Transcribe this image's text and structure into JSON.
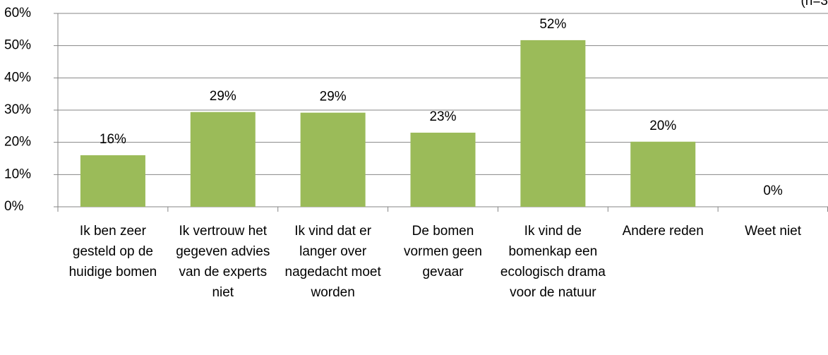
{
  "chart_data": {
    "type": "bar",
    "annotation": "(n=3",
    "categories": [
      "Ik ben zeer gesteld op de huidige bomen",
      "Ik vertrouw het gegeven advies van de experts niet",
      "Ik vind dat er langer over nagedacht moet worden",
      "De bomen vormen geen gevaar",
      "Ik vind de bomenkap een ecologisch drama voor de natuur",
      "Andere reden",
      "Weet niet"
    ],
    "values": [
      16,
      29.4,
      29.2,
      23,
      51.7,
      20.2,
      0
    ],
    "value_labels": [
      "16%",
      "29%",
      "29%",
      "23%",
      "52%",
      "20%",
      "0%"
    ],
    "color": "#9bbb59",
    "ylim": [
      0,
      60
    ],
    "yticks": [
      {
        "value": 0,
        "label": "0%"
      },
      {
        "value": 10,
        "label": "10%"
      },
      {
        "value": 20,
        "label": "20%"
      },
      {
        "value": 30,
        "label": "30%"
      },
      {
        "value": 40,
        "label": "40%"
      },
      {
        "value": 50,
        "label": "50%"
      },
      {
        "value": 60,
        "label": "60%"
      }
    ],
    "grid": true
  }
}
